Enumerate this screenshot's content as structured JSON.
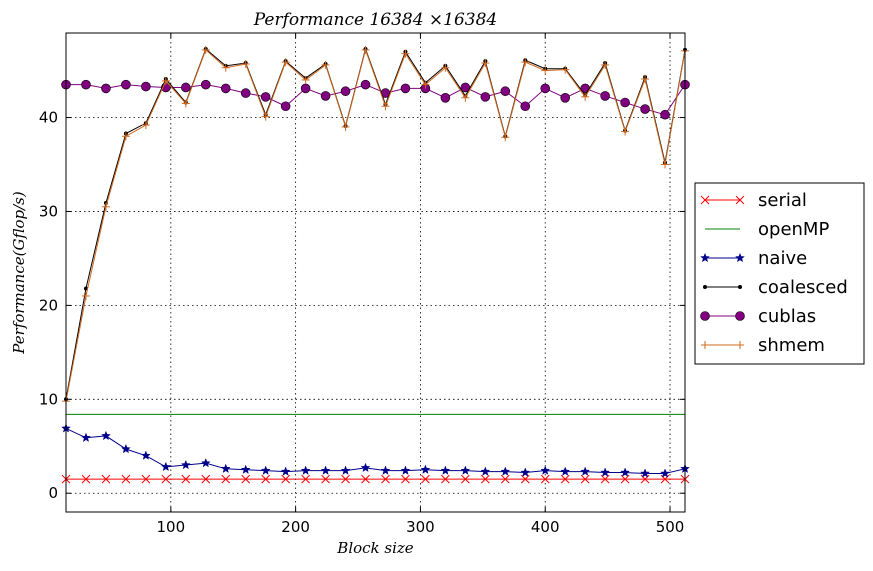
{
  "chart_data": {
    "type": "line",
    "title": "Performance 16384 ×16384",
    "xlabel": "Block size",
    "ylabel": "Performance(Gflop/s)",
    "xlim": [
      16,
      512
    ],
    "ylim": [
      -2,
      49
    ],
    "xticks": [
      100,
      200,
      300,
      400,
      500
    ],
    "yticks": [
      0,
      10,
      20,
      30,
      40
    ],
    "grid": true,
    "legend_position": "right",
    "x": [
      16,
      32,
      48,
      64,
      80,
      96,
      112,
      128,
      144,
      160,
      176,
      192,
      208,
      224,
      240,
      256,
      272,
      288,
      304,
      320,
      336,
      352,
      368,
      384,
      400,
      416,
      432,
      448,
      464,
      480,
      496,
      512
    ],
    "series": [
      {
        "name": "serial",
        "color": "#ff0000",
        "marker": "x",
        "values": [
          1.5,
          1.5,
          1.5,
          1.5,
          1.5,
          1.5,
          1.5,
          1.5,
          1.5,
          1.5,
          1.5,
          1.5,
          1.5,
          1.5,
          1.5,
          1.5,
          1.5,
          1.5,
          1.5,
          1.5,
          1.5,
          1.5,
          1.5,
          1.5,
          1.5,
          1.5,
          1.5,
          1.5,
          1.5,
          1.5,
          1.5,
          1.5
        ]
      },
      {
        "name": "openMP",
        "color": "#008000",
        "marker": "line",
        "values": [
          8.4,
          8.4,
          8.4,
          8.4,
          8.4,
          8.4,
          8.4,
          8.4,
          8.4,
          8.4,
          8.4,
          8.4,
          8.4,
          8.4,
          8.4,
          8.4,
          8.4,
          8.4,
          8.4,
          8.4,
          8.4,
          8.4,
          8.4,
          8.4,
          8.4,
          8.4,
          8.4,
          8.4,
          8.4,
          8.4,
          8.4,
          8.4
        ]
      },
      {
        "name": "naive",
        "color": "#00008b",
        "marker": "star",
        "values": [
          6.9,
          5.9,
          6.1,
          4.7,
          4.0,
          2.8,
          3.0,
          3.2,
          2.6,
          2.5,
          2.4,
          2.3,
          2.4,
          2.4,
          2.4,
          2.7,
          2.4,
          2.4,
          2.5,
          2.4,
          2.4,
          2.3,
          2.3,
          2.2,
          2.4,
          2.3,
          2.3,
          2.2,
          2.2,
          2.1,
          2.1,
          2.6
        ]
      },
      {
        "name": "coalesced",
        "color": "#000000",
        "marker": "dot",
        "values": [
          10.0,
          21.8,
          30.9,
          38.3,
          39.4,
          44.1,
          41.6,
          47.3,
          45.5,
          45.8,
          40.3,
          46.0,
          44.2,
          45.7,
          39.1,
          47.3,
          41.4,
          47.0,
          43.7,
          45.5,
          42.3,
          46.0,
          38.0,
          46.1,
          45.2,
          45.2,
          42.4,
          45.8,
          38.6,
          44.3,
          35.2,
          47.2
        ]
      },
      {
        "name": "cublas",
        "color": "#800080",
        "marker": "circle",
        "values": [
          43.5,
          43.5,
          43.1,
          43.5,
          43.3,
          43.2,
          43.2,
          43.5,
          43.1,
          42.6,
          42.2,
          41.2,
          43.1,
          42.3,
          42.8,
          43.5,
          42.6,
          43.1,
          43.1,
          42.1,
          43.2,
          42.2,
          42.8,
          41.2,
          43.1,
          42.1,
          43.1,
          42.3,
          41.6,
          40.9,
          40.3,
          43.5
        ]
      },
      {
        "name": "shmem",
        "color": "#d2691e",
        "marker": "plus",
        "values": [
          9.8,
          21.0,
          30.5,
          38.0,
          39.2,
          43.9,
          41.5,
          47.2,
          45.3,
          45.7,
          40.1,
          45.9,
          44.0,
          45.6,
          39.0,
          47.2,
          41.2,
          46.8,
          43.5,
          45.3,
          42.1,
          45.8,
          37.9,
          45.9,
          45.0,
          45.1,
          42.2,
          45.6,
          38.5,
          44.1,
          35.0,
          47.1
        ]
      }
    ]
  }
}
